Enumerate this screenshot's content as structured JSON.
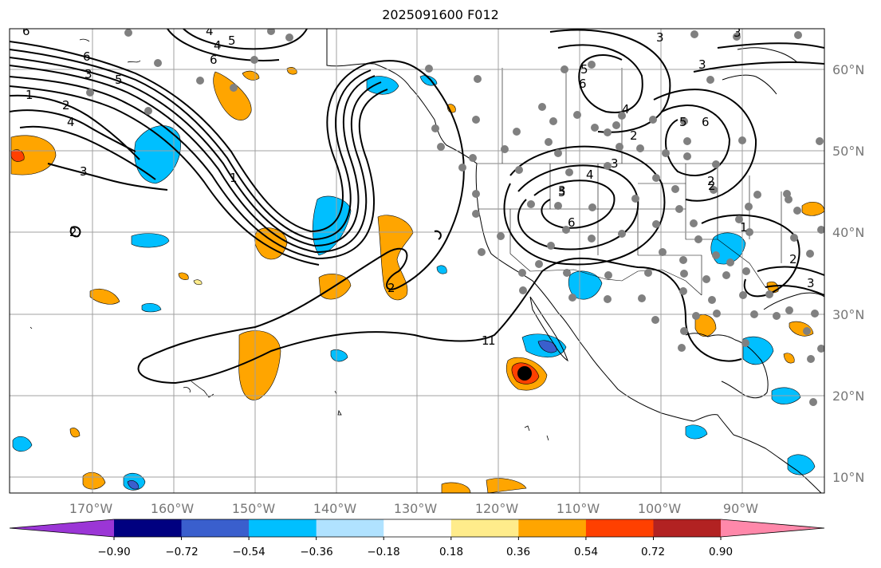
{
  "title": "2025091600 F012",
  "lat_labels": [
    "60°N",
    "50°N",
    "40°N",
    "30°N",
    "20°N",
    "10°N"
  ],
  "lon_labels": [
    "170°W",
    "160°W",
    "150°W",
    "140°W",
    "130°W",
    "120°W",
    "110°W",
    "100°W",
    "90°W"
  ],
  "colorbar": {
    "ticks": [
      "−0.90",
      "−0.72",
      "−0.54",
      "−0.36",
      "−0.18",
      "0.18",
      "0.36",
      "0.54",
      "0.72",
      "0.90"
    ],
    "colors": [
      "#9b36d6",
      "#000080",
      "#3a5fcd",
      "#00bfff",
      "#b0e2ff",
      "#ffffff",
      "#ffec8b",
      "#ffa500",
      "#ff4000",
      "#b22222",
      "#ff88aa"
    ]
  },
  "contour_labels": [
    "6",
    "6",
    "3",
    "5",
    "4",
    "1",
    "2",
    "4",
    "3",
    "2",
    "1",
    "2",
    "1",
    "5",
    "6",
    "5",
    "6",
    "4",
    "3",
    "2",
    "5",
    "6",
    "3",
    "4",
    "3",
    "3",
    "2",
    "1",
    "3",
    "5",
    "4",
    "6",
    "2",
    "1",
    "2",
    "3"
  ],
  "colors": {
    "grid": "#a0a0a0",
    "station": "#808080",
    "positive": "#ffa500",
    "negative": "#00bfff"
  }
}
